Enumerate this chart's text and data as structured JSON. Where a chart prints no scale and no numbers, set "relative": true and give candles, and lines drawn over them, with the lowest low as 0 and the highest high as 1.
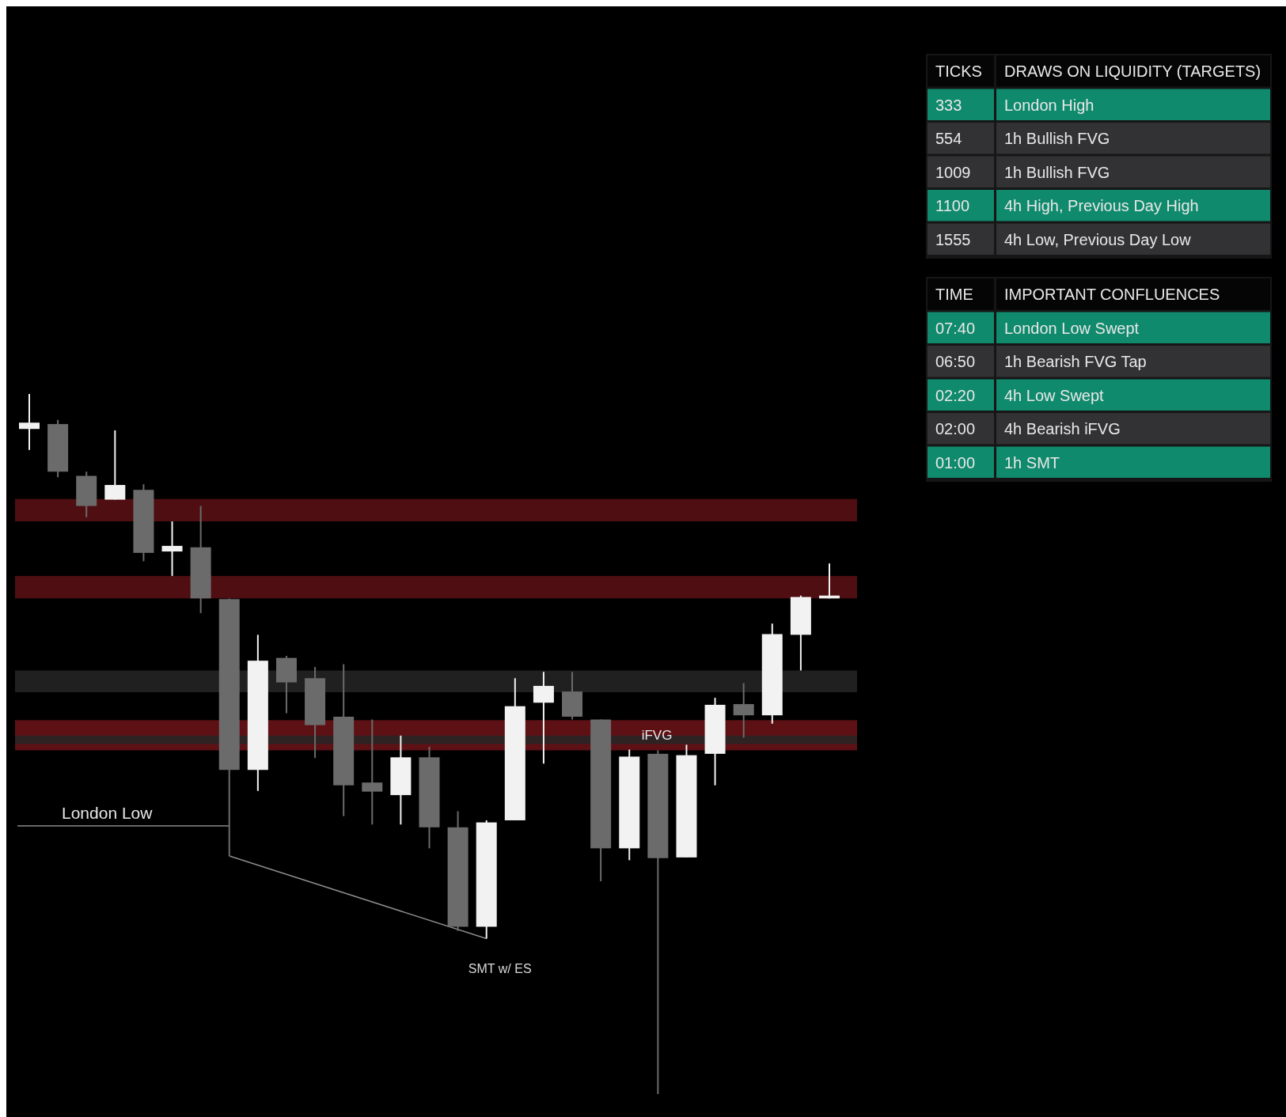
{
  "chart_data": [
    {
      "type": "candlestick",
      "relative": true,
      "categories": [
        null,
        null,
        null,
        null,
        null,
        null,
        null,
        null,
        null,
        null,
        null,
        null,
        null,
        null,
        null,
        null,
        null,
        null,
        null,
        null,
        null,
        null,
        null,
        null,
        null,
        null,
        null,
        null,
        null
      ],
      "ohlc": [
        [
          0.95,
          1.0,
          0.92,
          0.959
        ],
        [
          0.957,
          0.963,
          0.881,
          0.889
        ],
        [
          0.883,
          0.889,
          0.824,
          0.84
        ],
        [
          0.849,
          0.948,
          0.849,
          0.87
        ],
        [
          0.863,
          0.871,
          0.761,
          0.773
        ],
        [
          0.775,
          0.818,
          0.74,
          0.783
        ],
        [
          0.781,
          0.84,
          0.687,
          0.708
        ],
        [
          0.707,
          0.708,
          0.34,
          0.463
        ],
        [
          0.463,
          0.656,
          0.433,
          0.619
        ],
        [
          0.623,
          0.626,
          0.544,
          0.588
        ],
        [
          0.594,
          0.61,
          0.48,
          0.527
        ],
        [
          0.539,
          0.614,
          0.397,
          0.441
        ],
        [
          0.445,
          0.535,
          0.385,
          0.432
        ],
        [
          0.427,
          0.512,
          0.385,
          0.481
        ],
        [
          0.481,
          0.496,
          0.351,
          0.381
        ],
        [
          0.381,
          0.404,
          0.233,
          0.239
        ],
        [
          0.239,
          0.391,
          0.222,
          0.388
        ],
        [
          0.391,
          0.594,
          0.391,
          0.554
        ],
        [
          0.559,
          0.603,
          0.472,
          0.583
        ],
        [
          0.575,
          0.603,
          0.535,
          0.539
        ],
        [
          0.535,
          0.535,
          0.304,
          0.351
        ],
        [
          0.351,
          0.492,
          0.334,
          0.482
        ],
        [
          0.486,
          0.491,
          0.0,
          0.337
        ],
        [
          0.338,
          0.499,
          0.338,
          0.484
        ],
        [
          0.486,
          0.566,
          0.441,
          0.556
        ],
        [
          0.557,
          0.587,
          0.509,
          0.541
        ],
        [
          0.541,
          0.672,
          0.529,
          0.657
        ],
        [
          0.656,
          0.712,
          0.605,
          0.71
        ],
        [
          0.708,
          0.758,
          0.708,
          0.712
        ]
      ],
      "colors": [
        "#f2f2f2",
        "#6b6b6b",
        "#6b6b6b",
        "#f2f2f2",
        "#6b6b6b",
        "#f2f2f2",
        "#6b6b6b",
        "#6b6b6b",
        "#f2f2f2",
        "#6b6b6b",
        "#6b6b6b",
        "#6b6b6b",
        "#6b6b6b",
        "#f2f2f2",
        "#6b6b6b",
        "#6b6b6b",
        "#f2f2f2",
        "#f2f2f2",
        "#f2f2f2",
        "#6b6b6b",
        "#6b6b6b",
        "#f2f2f2",
        "#6b6b6b",
        "#f2f2f2",
        "#f2f2f2",
        "#6b6b6b",
        "#f2f2f2",
        "#f2f2f2",
        "#f2f2f2"
      ],
      "bands": [
        {
          "axis": "y",
          "from": 0.818,
          "to": 0.85,
          "color": "#5c1015"
        },
        {
          "axis": "y",
          "from": 0.708,
          "to": 0.74,
          "color": "#5c1015"
        },
        {
          "axis": "y",
          "from": 0.491,
          "to": 0.534,
          "color": "#6e1419",
          "label": "iFVG"
        },
        {
          "axis": "y",
          "from": 0.574,
          "to": 0.605,
          "color": "#262626"
        },
        {
          "axis": "y",
          "from": 0.5,
          "to": 0.512,
          "color": "#262626"
        }
      ],
      "ref_lines": [
        {
          "axis": "y",
          "value": 0.383,
          "label": "London Low",
          "color": "#8a8a8a"
        }
      ],
      "series": [
        {
          "type": "line",
          "color": "#8a8a8a",
          "values": [
            null,
            null,
            null,
            null,
            null,
            null,
            null,
            0.34,
            null,
            null,
            null,
            null,
            null,
            null,
            null,
            null,
            0.222,
            null,
            null,
            null,
            null,
            null,
            null,
            null,
            null,
            null,
            null,
            null,
            null
          ]
        }
      ],
      "annotations": [
        "SMT w/ ES"
      ]
    },
    {
      "type": "other",
      "categories": [
        "TICKS",
        "DRAWS ON LIQUIDITY (TARGETS)"
      ],
      "cells": [
        [
          "333",
          "London High"
        ],
        [
          "554",
          "1h Bullish FVG"
        ],
        [
          "1009",
          "1h Bullish FVG"
        ],
        [
          "1100",
          "4h High, Previous Day High"
        ],
        [
          "1555",
          "4h Low, Previous Day Low"
        ]
      ],
      "colors": [
        "#050505",
        "#050505",
        "#0f8a6c",
        "#0f8a6c",
        "#323234",
        "#323234",
        "#323234",
        "#323234",
        "#0f8a6c",
        "#0f8a6c",
        "#323234",
        "#323234"
      ]
    },
    {
      "type": "other",
      "categories": [
        "TIME",
        "IMPORTANT CONFLUENCES"
      ],
      "cells": [
        [
          "07:40",
          "London Low Swept"
        ],
        [
          "06:50",
          "1h Bearish FVG Tap"
        ],
        [
          "02:20",
          "4h Low Swept"
        ],
        [
          "02:00",
          "4h Bearish iFVG"
        ],
        [
          "01:00",
          "1h SMT"
        ]
      ],
      "colors": [
        "#050505",
        "#050505",
        "#0f8a6c",
        "#0f8a6c",
        "#323234",
        "#323234",
        "#0f8a6c",
        "#0f8a6c",
        "#323234",
        "#323234",
        "#0f8a6c",
        "#0f8a6c"
      ]
    }
  ]
}
